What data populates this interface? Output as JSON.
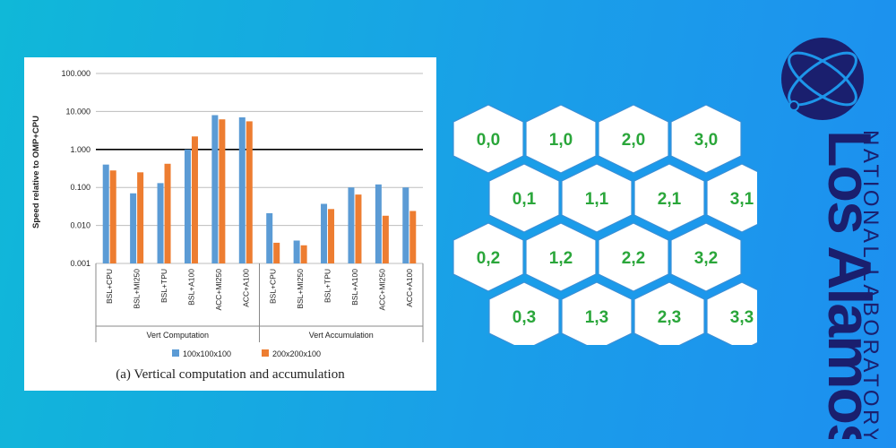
{
  "chart_data": {
    "type": "bar",
    "ylabel": "Speed relative to OMP+CPU",
    "yscale": "log",
    "ylim": [
      0.001,
      100
    ],
    "yticks": [
      "100.000",
      "10.000",
      "1.000",
      "0.100",
      "0.010",
      "0.001"
    ],
    "reference_line": 1,
    "groups": [
      {
        "label": "Vert Computation",
        "categories": [
          "BSL+CPU",
          "BSL+MI250",
          "BSL+TPU",
          "BSL+A100",
          "ACC+MI250",
          "ACC+A100"
        ]
      },
      {
        "label": "Vert Accumulation",
        "categories": [
          "BSL+CPU",
          "BSL+MI250",
          "BSL+TPU",
          "BSL+A100",
          "ACC+MI250",
          "ACC+A100"
        ]
      }
    ],
    "series": [
      {
        "name": "100x100x100",
        "color": "#5b9bd5",
        "values": [
          0.4,
          0.07,
          0.13,
          1.0,
          8.0,
          7.0,
          0.021,
          0.004,
          0.037,
          0.1,
          0.12,
          0.1
        ]
      },
      {
        "name": "200x200x100",
        "color": "#ed7d31",
        "values": [
          0.28,
          0.25,
          0.42,
          2.2,
          6.2,
          5.5,
          0.0035,
          0.003,
          0.027,
          0.065,
          0.018,
          0.024
        ]
      }
    ],
    "legend_position": "bottom",
    "grid": true
  },
  "caption": "(a)  Vertical computation and accumulation",
  "hex_grid": {
    "labels": [
      [
        "0,0",
        "1,0",
        "2,0",
        "3,0"
      ],
      [
        "0,1",
        "1,1",
        "2,1",
        "3,1"
      ],
      [
        "0,2",
        "1,2",
        "2,2",
        "3,2"
      ],
      [
        "0,3",
        "1,3",
        "2,3",
        "3,3"
      ]
    ],
    "text_color": "#2aa63a"
  },
  "logo": {
    "name": "Los Alamos",
    "subtitle": "NATIONAL LABORATORY",
    "color": "#1a1f6e"
  }
}
